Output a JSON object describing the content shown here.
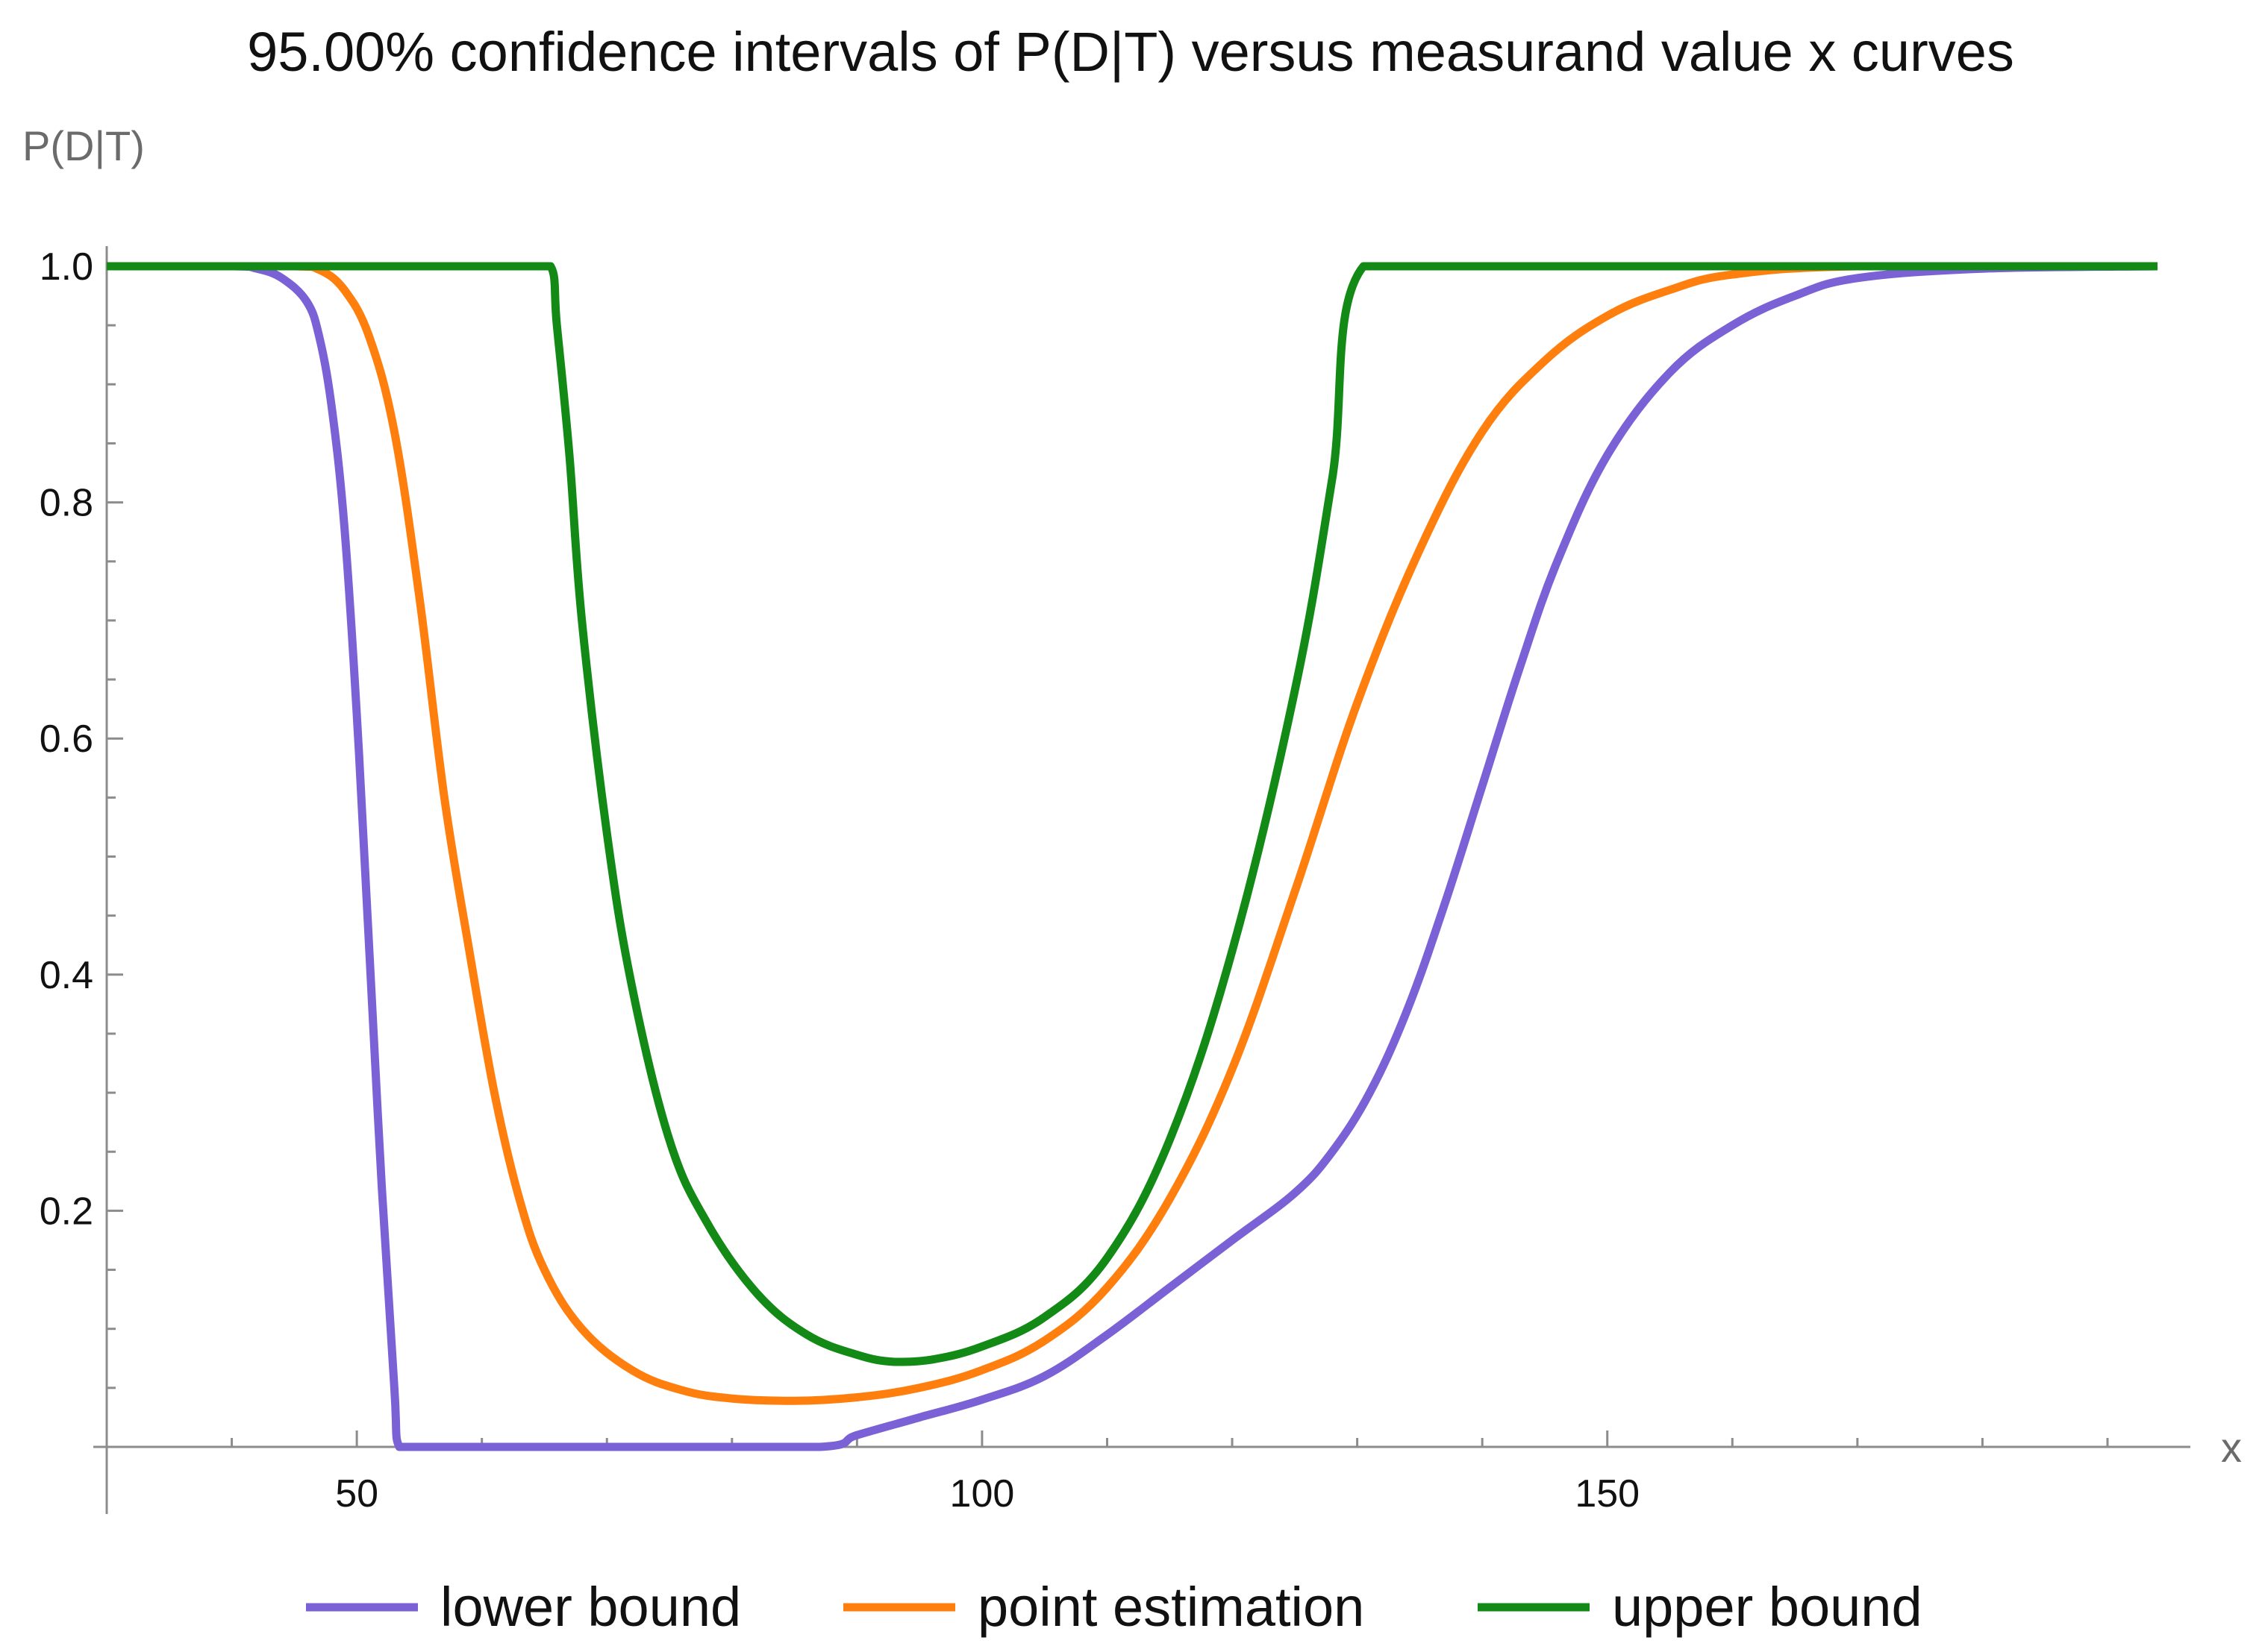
{
  "chart_data": {
    "type": "line",
    "title": "95.00% confidence intervals of P(D|T) versus measurand value x curves",
    "xlabel": "x",
    "ylabel": "P(D|T)",
    "xlim": [
      30,
      194
    ],
    "ylim": [
      0,
      1.0
    ],
    "grid": false,
    "legend_position": "bottom",
    "x_ticks": [
      50,
      100,
      150
    ],
    "y_ticks": [
      0.2,
      0.4,
      0.6,
      0.8,
      1.0
    ],
    "y_tick_labels": [
      "0.2",
      "0.4",
      "0.6",
      "0.8",
      "1.0"
    ],
    "series": [
      {
        "name": "lower bound",
        "color": "#7b61d6",
        "points": [
          [
            30,
            1.0
          ],
          [
            40,
            1.0
          ],
          [
            42,
            0.998
          ],
          [
            44,
            0.99
          ],
          [
            46,
            0.97
          ],
          [
            47,
            0.94
          ],
          [
            48,
            0.88
          ],
          [
            49,
            0.78
          ],
          [
            50,
            0.62
          ],
          [
            51,
            0.42
          ],
          [
            52,
            0.22
          ],
          [
            53,
            0.05
          ],
          [
            53.4,
            0.0
          ],
          [
            87,
            0.0
          ],
          [
            90,
            0.01
          ],
          [
            95,
            0.025
          ],
          [
            100,
            0.04
          ],
          [
            105,
            0.06
          ],
          [
            110,
            0.095
          ],
          [
            115,
            0.135
          ],
          [
            120,
            0.175
          ],
          [
            125,
            0.215
          ],
          [
            128,
            0.25
          ],
          [
            131,
            0.3
          ],
          [
            134,
            0.37
          ],
          [
            137,
            0.46
          ],
          [
            140,
            0.56
          ],
          [
            143,
            0.66
          ],
          [
            146,
            0.75
          ],
          [
            150,
            0.84
          ],
          [
            155,
            0.91
          ],
          [
            160,
            0.95
          ],
          [
            165,
            0.975
          ],
          [
            170,
            0.99
          ],
          [
            180,
            0.998
          ],
          [
            194,
            1.0
          ]
        ]
      },
      {
        "name": "point estimation",
        "color": "#ff7f0e",
        "points": [
          [
            30,
            1.0
          ],
          [
            45,
            1.0
          ],
          [
            47,
            0.997
          ],
          [
            49,
            0.98
          ],
          [
            51,
            0.94
          ],
          [
            53,
            0.86
          ],
          [
            55,
            0.72
          ],
          [
            57,
            0.55
          ],
          [
            59,
            0.42
          ],
          [
            61,
            0.3
          ],
          [
            63,
            0.21
          ],
          [
            65,
            0.15
          ],
          [
            68,
            0.1
          ],
          [
            72,
            0.065
          ],
          [
            76,
            0.048
          ],
          [
            80,
            0.041
          ],
          [
            85,
            0.039
          ],
          [
            90,
            0.042
          ],
          [
            95,
            0.05
          ],
          [
            100,
            0.065
          ],
          [
            105,
            0.09
          ],
          [
            110,
            0.135
          ],
          [
            115,
            0.21
          ],
          [
            120,
            0.32
          ],
          [
            125,
            0.47
          ],
          [
            130,
            0.63
          ],
          [
            135,
            0.76
          ],
          [
            140,
            0.86
          ],
          [
            145,
            0.92
          ],
          [
            150,
            0.958
          ],
          [
            155,
            0.98
          ],
          [
            160,
            0.993
          ],
          [
            170,
            1.0
          ],
          [
            194,
            1.0
          ]
        ]
      },
      {
        "name": "upper bound",
        "color": "#138a16",
        "points": [
          [
            30,
            1.0
          ],
          [
            65.5,
            1.0
          ],
          [
            66,
            0.95
          ],
          [
            67,
            0.84
          ],
          [
            68,
            0.7
          ],
          [
            70,
            0.52
          ],
          [
            72,
            0.39
          ],
          [
            75,
            0.26
          ],
          [
            78,
            0.19
          ],
          [
            82,
            0.13
          ],
          [
            86,
            0.095
          ],
          [
            90,
            0.078
          ],
          [
            93,
            0.072
          ],
          [
            96,
            0.074
          ],
          [
            100,
            0.085
          ],
          [
            105,
            0.11
          ],
          [
            110,
            0.16
          ],
          [
            115,
            0.26
          ],
          [
            120,
            0.42
          ],
          [
            125,
            0.64
          ],
          [
            128,
            0.82
          ],
          [
            130.5,
            1.0
          ],
          [
            194,
            1.0
          ]
        ]
      }
    ]
  }
}
